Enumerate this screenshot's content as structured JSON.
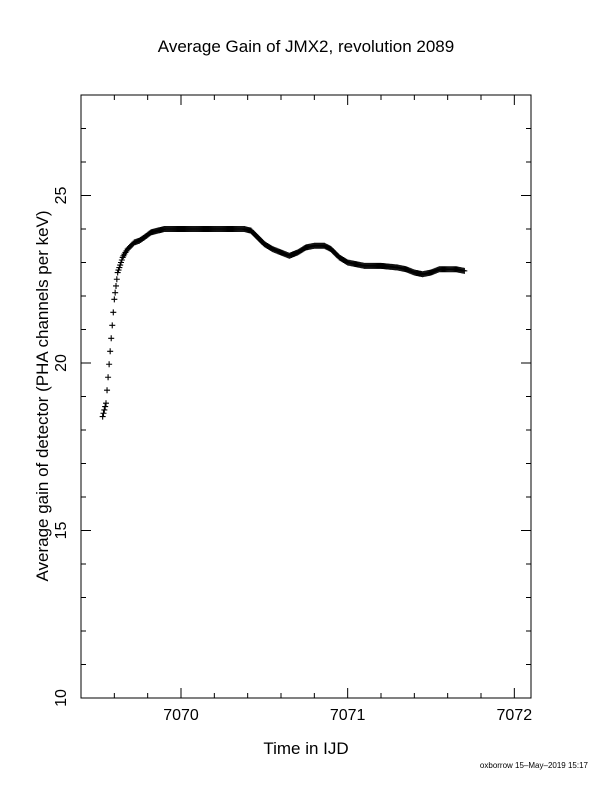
{
  "chart_data": {
    "type": "scatter",
    "title": "Average Gain of JMX2, revolution 2089",
    "xlabel": "Time in IJD",
    "ylabel": "Average gain of detector (PHA channels per keV)",
    "xlim": [
      7069.4,
      7072.1
    ],
    "ylim": [
      10,
      28
    ],
    "x_ticks": [
      "7070",
      "7071",
      "7072"
    ],
    "y_ticks": [
      "10",
      "15",
      "20",
      "25"
    ],
    "grid": false,
    "marker": "plus",
    "footer": "oxborrow 15–May–2019 15:17",
    "series": [
      {
        "x": [
          7069.53,
          7069.535,
          7069.54,
          7069.545,
          7069.55,
          7069.6,
          7069.605,
          7069.61,
          7069.62,
          7069.63,
          7069.64,
          7069.65,
          7069.66,
          7069.68,
          7069.7,
          7069.72,
          7069.75,
          7069.78,
          7069.82,
          7069.86,
          7069.9,
          7070.0,
          7070.1,
          7070.2,
          7070.3,
          7070.38,
          7070.42,
          7070.46,
          7070.5,
          7070.55,
          7070.6,
          7070.65,
          7070.7,
          7070.75,
          7070.8,
          7070.86,
          7070.9,
          7070.95,
          7071.0,
          7071.05,
          7071.1,
          7071.2,
          7071.3,
          7071.35,
          7071.4,
          7071.45,
          7071.5,
          7071.55,
          7071.6,
          7071.65,
          7071.7
        ],
        "y": [
          18.4,
          18.5,
          18.6,
          18.7,
          18.8,
          21.9,
          22.1,
          22.3,
          22.7,
          22.85,
          23.0,
          23.15,
          23.25,
          23.4,
          23.5,
          23.6,
          23.65,
          23.75,
          23.9,
          23.95,
          24.0,
          24.0,
          24.0,
          24.0,
          24.0,
          24.0,
          23.95,
          23.75,
          23.55,
          23.4,
          23.3,
          23.2,
          23.3,
          23.45,
          23.5,
          23.5,
          23.4,
          23.15,
          23.0,
          22.95,
          22.9,
          22.9,
          22.85,
          22.8,
          22.7,
          22.65,
          22.7,
          22.8,
          22.8,
          22.8,
          22.75
        ]
      }
    ]
  }
}
